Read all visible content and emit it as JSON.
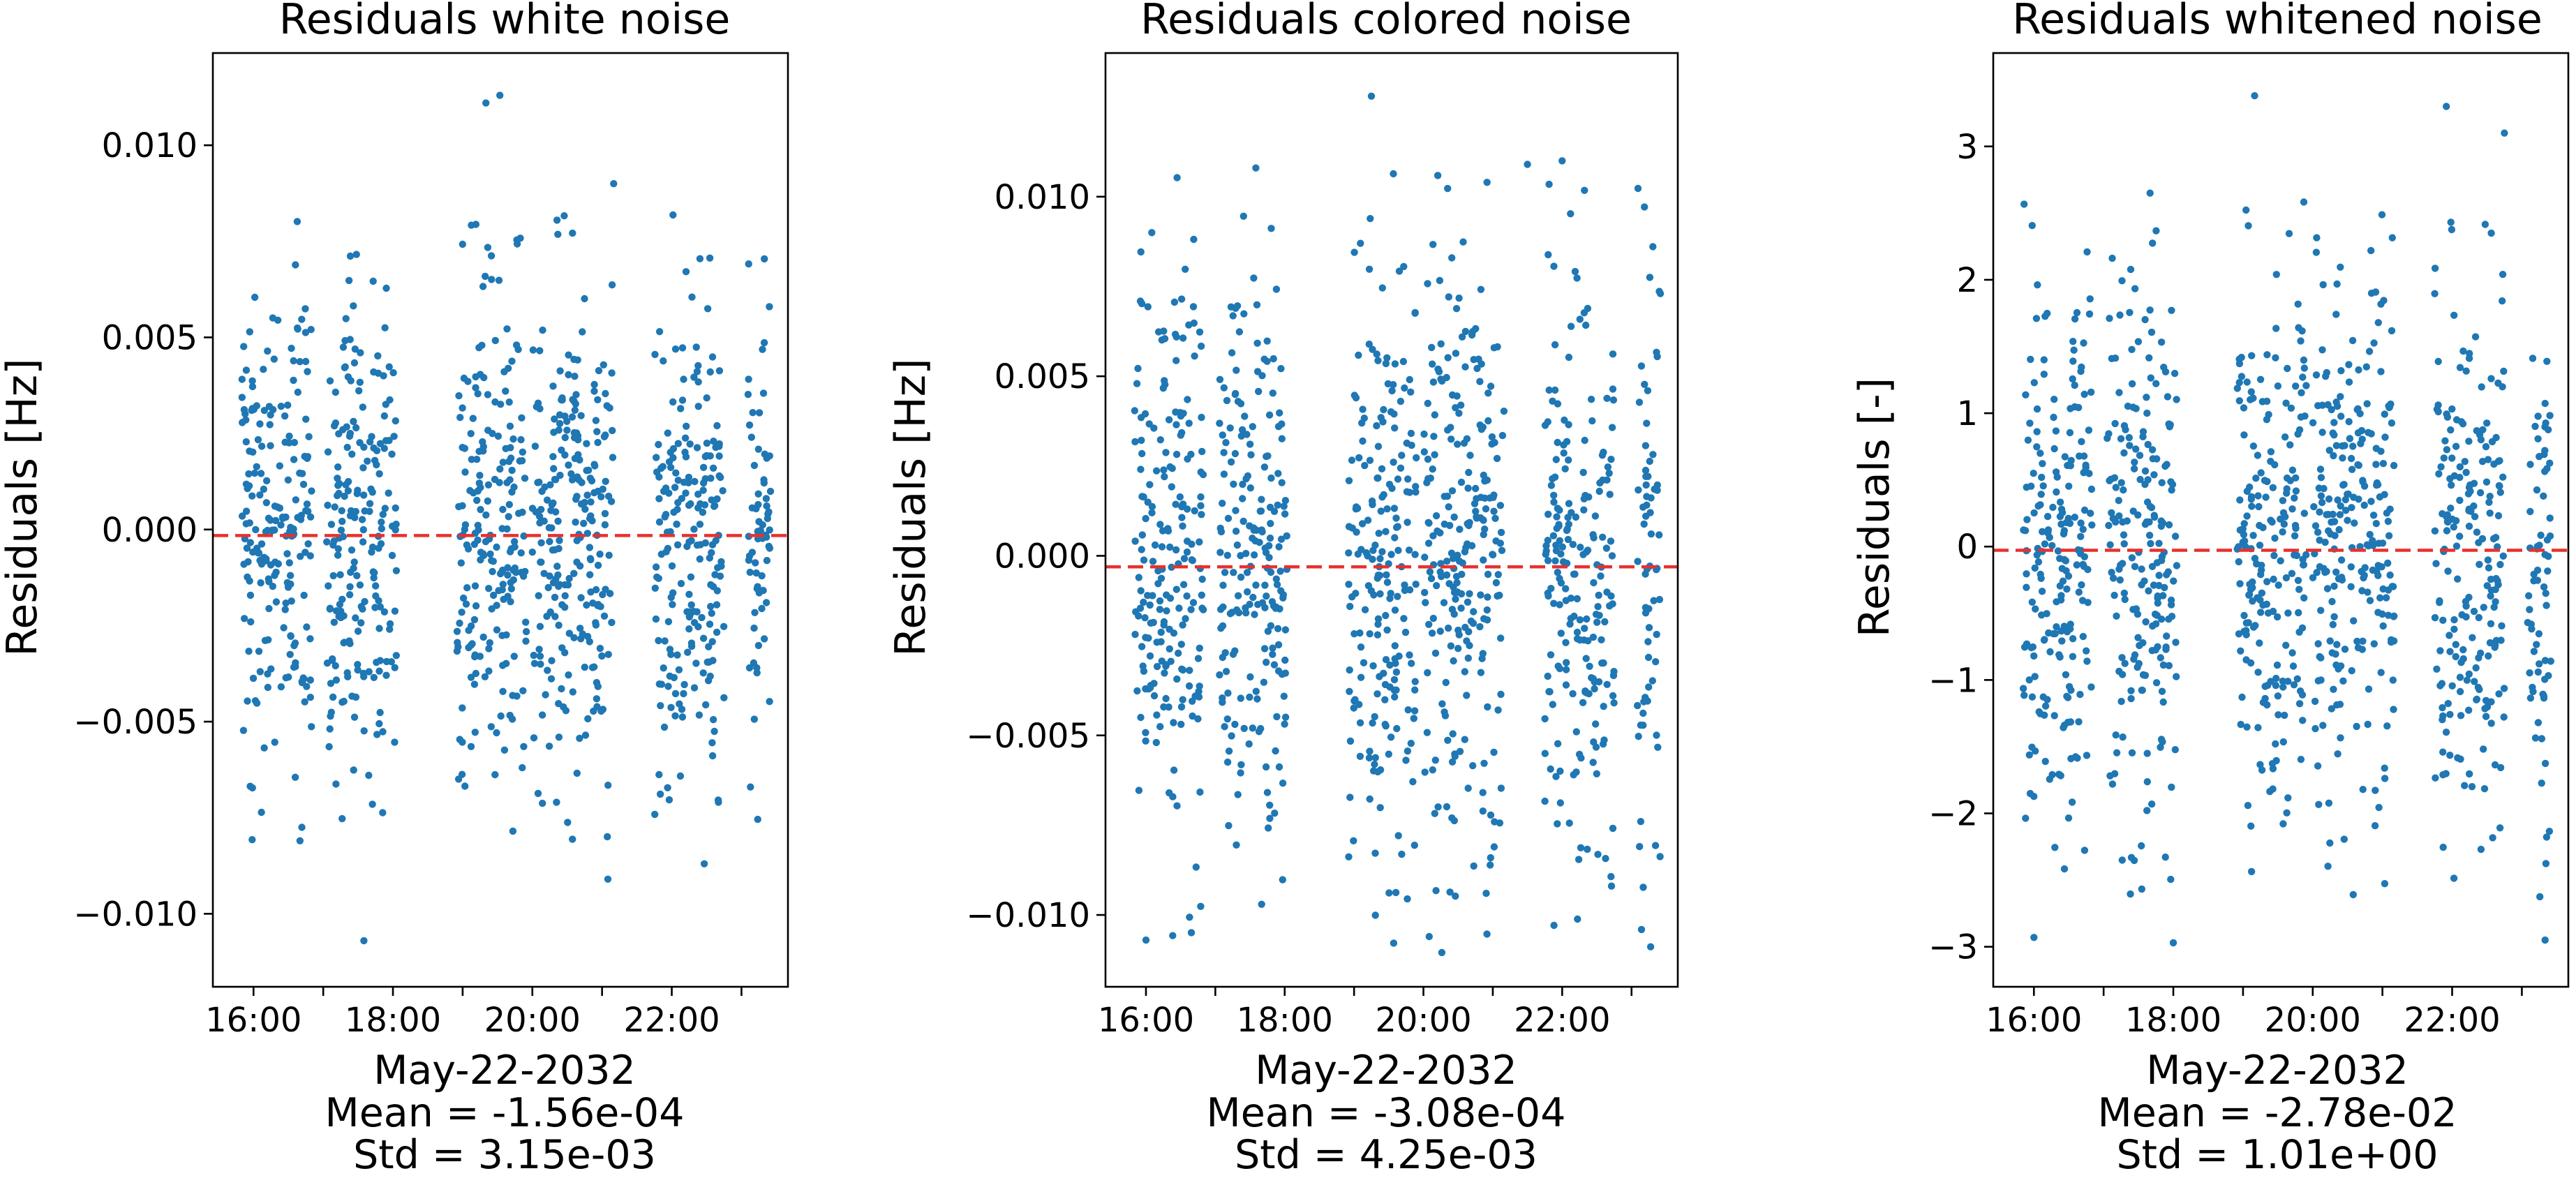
{
  "figure": {
    "background": "#ffffff"
  },
  "style": {
    "point_color": "#1f77b4",
    "mean_line_color": "#e8312d",
    "axes_color": "#000000"
  },
  "chart_data": [
    {
      "type": "scatter",
      "title": "Residuals white noise",
      "ylabel": "Residuals [Hz]",
      "xlabel": "May-22-2032",
      "stats": [
        "Mean = -1.56e-04",
        "Std = 3.15e-03"
      ],
      "mean_value": -0.000156,
      "std_value": 0.00315,
      "ylim": [
        -0.0119,
        0.0124
      ],
      "yticks": [
        -0.01,
        -0.005,
        0.0,
        0.005,
        0.01
      ],
      "ytick_labels": [
        "−0.010",
        "−0.005",
        "0.000",
        "0.005",
        "0.010"
      ],
      "xlim": [
        "15:25",
        "23:40"
      ],
      "xticks": [
        "16:00",
        "17:00",
        "18:00",
        "19:00",
        "20:00",
        "21:00",
        "22:00",
        "23:00"
      ],
      "xtick_labels": [
        "16:00",
        "",
        "18:00",
        "",
        "20:00",
        "",
        "22:00",
        ""
      ],
      "grid": false,
      "point_clusters": [
        [
          "15:50",
          "16:50"
        ],
        [
          "17:03",
          "18:03"
        ],
        [
          "18:55",
          "19:55"
        ],
        [
          "20:00",
          "21:10"
        ],
        [
          "21:45",
          "22:45"
        ],
        [
          "23:05",
          "23:25"
        ]
      ],
      "outliers": [
        [
          "17:35",
          -0.0107
        ],
        [
          "19:20",
          0.0111
        ],
        [
          "19:32",
          0.0113
        ],
        [
          "21:05",
          -0.0091
        ],
        [
          "21:10",
          0.009
        ],
        [
          "22:28",
          -0.0087
        ],
        [
          "16:40",
          -0.0081
        ]
      ]
    },
    {
      "type": "scatter",
      "title": "Residuals colored noise",
      "ylabel": "Residuals [Hz]",
      "xlabel": "May-22-2032",
      "stats": [
        "Mean = -3.08e-04",
        "Std = 4.25e-03"
      ],
      "mean_value": -0.000308,
      "std_value": 0.00425,
      "ylim": [
        -0.012,
        0.014
      ],
      "yticks": [
        -0.01,
        -0.005,
        0.0,
        0.005,
        0.01
      ],
      "ytick_labels": [
        "−0.010",
        "−0.005",
        "0.000",
        "0.005",
        "0.010"
      ],
      "xlim": [
        "15:25",
        "23:40"
      ],
      "xticks": [
        "16:00",
        "17:00",
        "18:00",
        "19:00",
        "20:00",
        "21:00",
        "22:00",
        "23:00"
      ],
      "xtick_labels": [
        "16:00",
        "",
        "18:00",
        "",
        "20:00",
        "",
        "22:00",
        ""
      ],
      "grid": false,
      "point_clusters": [
        [
          "15:50",
          "16:50"
        ],
        [
          "17:03",
          "18:03"
        ],
        [
          "18:55",
          "19:55"
        ],
        [
          "20:00",
          "21:10"
        ],
        [
          "21:45",
          "22:45"
        ],
        [
          "23:05",
          "23:25"
        ]
      ],
      "outliers": [
        [
          "16:00",
          -0.0107
        ],
        [
          "19:15",
          0.0128
        ],
        [
          "17:35",
          0.0108
        ],
        [
          "20:55",
          0.0104
        ],
        [
          "21:30",
          0.0109
        ],
        [
          "22:00",
          0.011
        ],
        [
          "16:05",
          0.009
        ],
        [
          "20:05",
          -0.0106
        ]
      ]
    },
    {
      "type": "scatter",
      "title": "Residuals whitened noise",
      "ylabel": "Residuals [-]",
      "xlabel": "May-22-2032",
      "stats": [
        "Mean = -2.78e-02",
        "Std = 1.01e+00"
      ],
      "mean_value": -0.0278,
      "std_value": 1.01,
      "ylim": [
        -3.3,
        3.7
      ],
      "yticks": [
        -3,
        -2,
        -1,
        0,
        1,
        2,
        3
      ],
      "ytick_labels": [
        "−3",
        "−2",
        "−1",
        "0",
        "1",
        "2",
        "3"
      ],
      "xlim": [
        "15:25",
        "23:40"
      ],
      "xticks": [
        "16:00",
        "17:00",
        "18:00",
        "19:00",
        "20:00",
        "21:00",
        "22:00",
        "23:00"
      ],
      "xtick_labels": [
        "16:00",
        "",
        "18:00",
        "",
        "20:00",
        "",
        "22:00",
        ""
      ],
      "grid": false,
      "point_clusters": [
        [
          "15:50",
          "16:50"
        ],
        [
          "17:03",
          "18:03"
        ],
        [
          "18:55",
          "19:55"
        ],
        [
          "20:00",
          "21:10"
        ],
        [
          "21:45",
          "22:45"
        ],
        [
          "23:05",
          "23:25"
        ]
      ],
      "outliers": [
        [
          "16:00",
          -2.93
        ],
        [
          "18:00",
          -2.97
        ],
        [
          "19:10",
          3.38
        ],
        [
          "21:55",
          3.3
        ],
        [
          "22:45",
          3.1
        ],
        [
          "23:20",
          -2.95
        ],
        [
          "17:40",
          2.65
        ]
      ]
    }
  ]
}
